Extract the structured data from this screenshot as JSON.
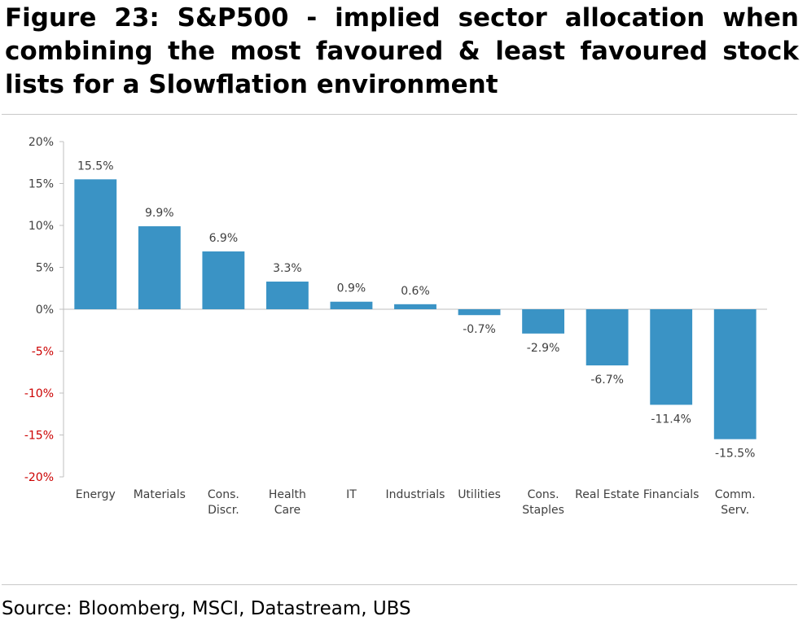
{
  "figure": {
    "title": "Figure 23: S&P500 - implied sector allocation when combining the most favoured & least favoured stock lists for a Slowflation environment",
    "source": "Source: Bloomberg, MSCI, Datastream, UBS"
  },
  "colors": {
    "bar": "#3a93c5",
    "negative_tick": "#cc0000",
    "positive_tick": "#404040",
    "axis": "#bfbfbf"
  },
  "chart_data": {
    "type": "bar",
    "categories": [
      [
        "Energy"
      ],
      [
        "Materials"
      ],
      [
        "Cons.",
        "Discr."
      ],
      [
        "Health",
        "Care"
      ],
      [
        "IT"
      ],
      [
        "Industrials"
      ],
      [
        "Utilities"
      ],
      [
        "Cons.",
        "Staples"
      ],
      [
        "Real Estate"
      ],
      [
        "Financials"
      ],
      [
        "Comm.",
        "Serv."
      ]
    ],
    "values": [
      15.5,
      9.9,
      6.9,
      3.3,
      0.9,
      0.6,
      -0.7,
      -2.9,
      -6.7,
      -11.4,
      -15.5
    ],
    "data_labels": [
      "15.5%",
      "9.9%",
      "6.9%",
      "3.3%",
      "0.9%",
      "0.6%",
      "-0.7%",
      "-2.9%",
      "-6.7%",
      "-11.4%",
      "-15.5%"
    ],
    "ylim": [
      -20,
      20
    ],
    "yticks": [
      20,
      15,
      10,
      5,
      0,
      -5,
      -10,
      -15,
      -20
    ],
    "ytick_labels": [
      "20%",
      "15%",
      "10%",
      "5%",
      "0%",
      "-5%",
      "-10%",
      "-15%",
      "-20%"
    ],
    "xlabel": "",
    "ylabel": "",
    "grid": false,
    "legend": "none"
  }
}
